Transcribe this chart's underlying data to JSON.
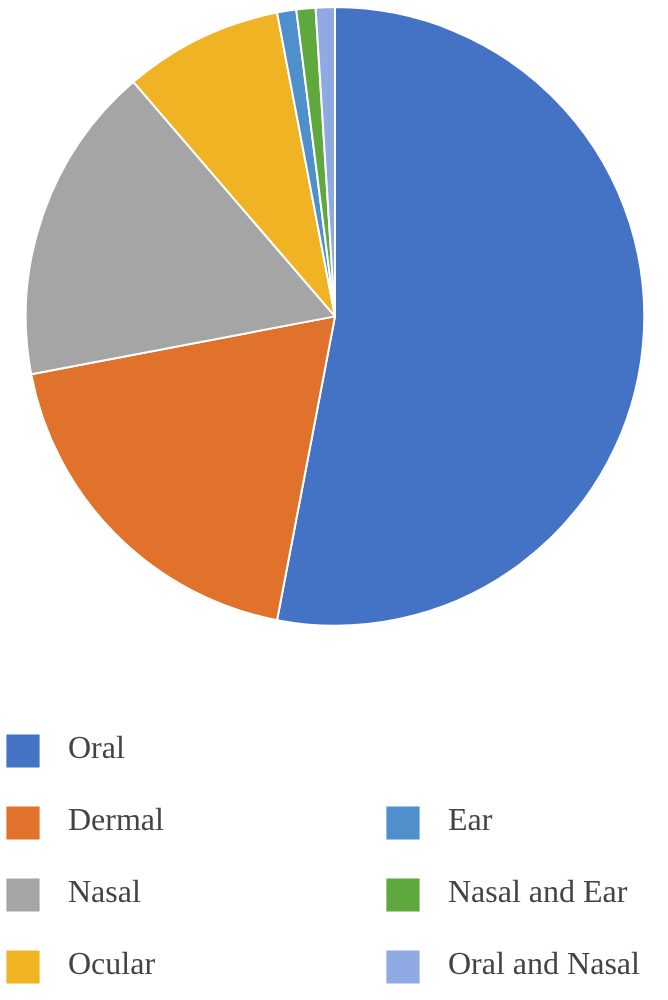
{
  "chart_data": {
    "type": "pie",
    "categories": [
      "Oral",
      "Dermal",
      "Nasal",
      "Ocular",
      "Ear",
      "Nasal and Ear",
      "Oral and Nasal"
    ],
    "values": [
      53,
      19,
      16.7,
      8.3,
      1,
      1,
      1
    ],
    "colors": [
      "#4472c4",
      "#e0722b",
      "#a5a5a5",
      "#f0b324",
      "#4f8fcb",
      "#5fa83d",
      "#8fa9e2"
    ],
    "legend": "bottom"
  }
}
